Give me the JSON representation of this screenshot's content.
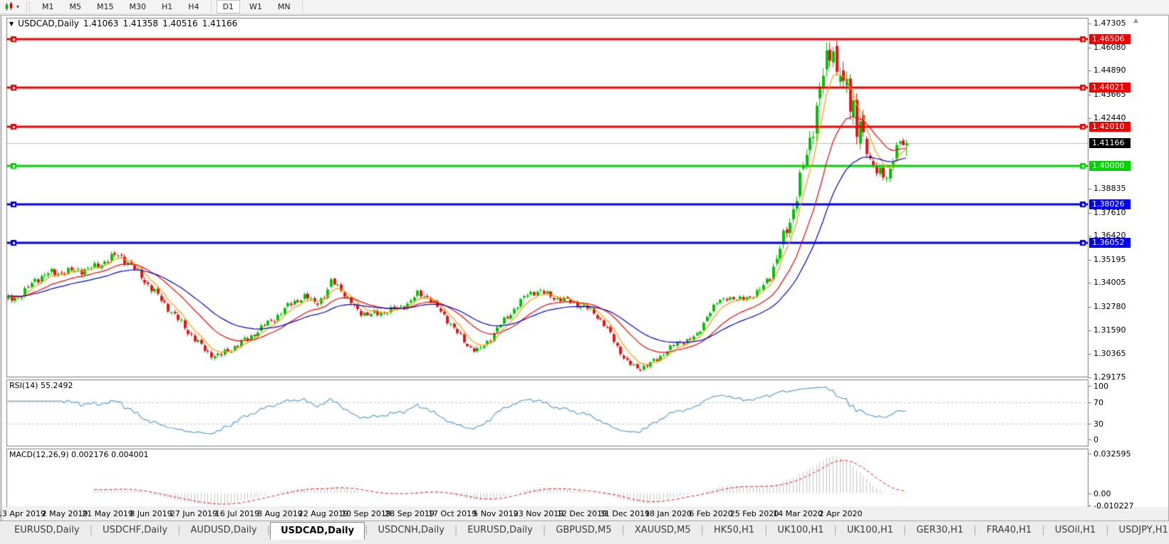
{
  "toolbar": {
    "timeframes": [
      "M1",
      "M5",
      "M15",
      "M30",
      "H1",
      "H4",
      "D1",
      "W1",
      "MN"
    ],
    "active_timeframe": "D1",
    "separator_after": [
      "H4",
      "MN"
    ]
  },
  "title": {
    "symbol_period": "USDCAD,Daily",
    "open": "1.41063",
    "high": "1.41358",
    "low": "1.40516",
    "close": "1.41166"
  },
  "chart_data": {
    "type": "candlestick",
    "symbol": "USDCAD",
    "timeframe": "Daily",
    "current_bar": {
      "open": 1.41063,
      "high": 1.41358,
      "low": 1.40516,
      "close": 1.41166
    },
    "y_axis_ticks": [
      "1.47305",
      "1.46080",
      "1.44890",
      "1.43665",
      "1.42440",
      "1.38835",
      "1.37610",
      "1.36420",
      "1.35195",
      "1.34005",
      "1.32780",
      "1.31590",
      "1.30365",
      "1.29175"
    ],
    "price_max": 1.476,
    "price_min": 1.292,
    "x_axis_labels": [
      "13 Apr 2019",
      "2 May 2019",
      "21 May 2019",
      "8 Jun 2019",
      "27 Jun 2019",
      "16 Jul 2019",
      "3 Aug 2019",
      "22 Aug 2019",
      "10 Sep 2019",
      "28 Sep 2019",
      "17 Oct 2019",
      "5 Nov 2019",
      "23 Nov 2019",
      "12 Dec 2019",
      "31 Dec 2019",
      "18 Jan 2020",
      "6 Feb 2020",
      "25 Feb 2020",
      "14 Mar 2020",
      "2 Apr 2020"
    ],
    "horizontal_lines": [
      {
        "price": 1.46506,
        "label": "1.46506",
        "color": "#ee0000"
      },
      {
        "price": 1.44021,
        "label": "1.44021",
        "color": "#ee0000"
      },
      {
        "price": 1.4201,
        "label": "1.42010",
        "color": "#ee0000"
      },
      {
        "price": 1.4,
        "label": "1.40000",
        "color": "#00d400"
      },
      {
        "price": 1.38026,
        "label": "1.38026",
        "color": "#0000ee"
      },
      {
        "price": 1.36052,
        "label": "1.36052",
        "color": "#0000ee"
      }
    ],
    "current_price": {
      "value": 1.41166,
      "label": "1.41166",
      "line_color": "#bdbdbd",
      "label_bg": "#000000"
    },
    "bars_count": 271,
    "up_color": "#00c400",
    "down_color": "#f01010",
    "price_path": [
      [
        0,
        1.331
      ],
      [
        5,
        1.334
      ],
      [
        9,
        1.342
      ],
      [
        13,
        1.345
      ],
      [
        17,
        1.3455
      ],
      [
        22,
        1.3465
      ],
      [
        27,
        1.348
      ],
      [
        31,
        1.3525
      ],
      [
        34,
        1.3545
      ],
      [
        37,
        1.3505
      ],
      [
        40,
        1.345
      ],
      [
        43,
        1.339
      ],
      [
        47,
        1.331
      ],
      [
        51,
        1.323
      ],
      [
        55,
        1.315
      ],
      [
        58,
        1.309
      ],
      [
        61,
        1.304
      ],
      [
        64,
        1.3025
      ],
      [
        67,
        1.3055
      ],
      [
        70,
        1.3085
      ],
      [
        74,
        1.313
      ],
      [
        78,
        1.3185
      ],
      [
        82,
        1.3235
      ],
      [
        86,
        1.33
      ],
      [
        90,
        1.333
      ],
      [
        93,
        1.33
      ],
      [
        96,
        1.333
      ],
      [
        98,
        1.341
      ],
      [
        100,
        1.339
      ],
      [
        103,
        1.331
      ],
      [
        106,
        1.326
      ],
      [
        109,
        1.3235
      ],
      [
        113,
        1.325
      ],
      [
        117,
        1.3265
      ],
      [
        121,
        1.3295
      ],
      [
        124,
        1.3345
      ],
      [
        127,
        1.333
      ],
      [
        130,
        1.327
      ],
      [
        133,
        1.321
      ],
      [
        136,
        1.314
      ],
      [
        139,
        1.308
      ],
      [
        142,
        1.305
      ],
      [
        145,
        1.31
      ],
      [
        148,
        1.317
      ],
      [
        151,
        1.323
      ],
      [
        154,
        1.329
      ],
      [
        157,
        1.3345
      ],
      [
        160,
        1.336
      ],
      [
        163,
        1.334
      ],
      [
        166,
        1.332
      ],
      [
        169,
        1.331
      ],
      [
        172,
        1.329
      ],
      [
        175,
        1.327
      ],
      [
        178,
        1.323
      ],
      [
        181,
        1.316
      ],
      [
        184,
        1.307
      ],
      [
        187,
        1.299
      ],
      [
        190,
        1.2962
      ],
      [
        193,
        1.298
      ],
      [
        196,
        1.301
      ],
      [
        199,
        1.306
      ],
      [
        202,
        1.309
      ],
      [
        205,
        1.311
      ],
      [
        208,
        1.313
      ],
      [
        211,
        1.324
      ],
      [
        214,
        1.33
      ],
      [
        217,
        1.333
      ],
      [
        220,
        1.331
      ],
      [
        223,
        1.333
      ],
      [
        226,
        1.3345
      ],
      [
        228,
        1.339
      ],
      [
        230,
        1.345
      ],
      [
        232,
        1.353
      ],
      [
        234,
        1.364
      ],
      [
        236,
        1.373
      ],
      [
        238,
        1.387
      ],
      [
        240,
        1.4
      ],
      [
        242,
        1.414
      ],
      [
        244,
        1.433
      ],
      [
        246,
        1.448
      ],
      [
        248,
        1.458
      ],
      [
        249,
        1.463
      ],
      [
        250,
        1.445
      ],
      [
        251,
        1.453
      ],
      [
        252,
        1.434
      ],
      [
        253,
        1.444
      ],
      [
        254,
        1.425
      ],
      [
        255,
        1.433
      ],
      [
        256,
        1.418
      ],
      [
        257,
        1.425
      ],
      [
        258,
        1.413
      ],
      [
        259,
        1.405
      ],
      [
        260,
        1.399
      ],
      [
        261,
        1.402
      ],
      [
        262,
        1.397
      ],
      [
        263,
        1.3995
      ],
      [
        264,
        1.3955
      ],
      [
        265,
        1.3905
      ],
      [
        266,
        1.3985
      ],
      [
        267,
        1.404
      ],
      [
        268,
        1.411
      ],
      [
        269,
        1.4165
      ],
      [
        270,
        1.4117
      ]
    ],
    "bar_range_path": [
      [
        0,
        0.0055
      ],
      [
        30,
        0.0062
      ],
      [
        45,
        0.006
      ],
      [
        70,
        0.0052
      ],
      [
        100,
        0.005
      ],
      [
        130,
        0.0052
      ],
      [
        160,
        0.0048
      ],
      [
        185,
        0.0046
      ],
      [
        200,
        0.004
      ],
      [
        222,
        0.0042
      ],
      [
        228,
        0.007
      ],
      [
        234,
        0.011
      ],
      [
        240,
        0.015
      ],
      [
        245,
        0.019
      ],
      [
        250,
        0.021
      ],
      [
        254,
        0.019
      ],
      [
        258,
        0.013
      ],
      [
        262,
        0.008
      ],
      [
        266,
        0.009
      ],
      [
        270,
        0.0085
      ]
    ],
    "moving_averages": [
      {
        "name": "fast",
        "period": 6,
        "color": "#ff9900"
      },
      {
        "name": "medium",
        "period": 18,
        "color": "#ee0000"
      },
      {
        "name": "slow",
        "period": 34,
        "color": "#0000cc"
      }
    ],
    "indicators": {
      "rsi": {
        "label": "RSI(14) 55.2492",
        "period": 14,
        "value": 55.2492,
        "levels": [
          70,
          30
        ],
        "scale_ticks": [
          "100",
          "70",
          "30",
          "0"
        ],
        "scale_max": 100,
        "scale_min": 0,
        "color": "#56a0d9",
        "level_color": "#c0c0c0"
      },
      "macd": {
        "label": "MACD(12,26,9) 0.002176 0.004001",
        "fast": 12,
        "slow": 26,
        "signal_period": 9,
        "macd_value": 0.002176,
        "signal_value": 0.004001,
        "scale_ticks": [
          "0.032595",
          "0.00",
          "-0.010227"
        ],
        "scale_max": 0.032595,
        "scale_min": -0.010227,
        "histogram_color": "#c4c4c4",
        "signal_color": "#f01010"
      }
    }
  },
  "tabs": {
    "items": [
      "EURUSD,Daily",
      "USDCHF,Daily",
      "AUDUSD,Daily",
      "USDCAD,Daily",
      "USDCNH,Daily",
      "EURUSD,Daily",
      "GBPUSD,M5",
      "XAUUSD,M5",
      "HK50,H1",
      "UK100,H1",
      "UK100,H1",
      "GER30,H1",
      "FRA40,H1",
      "USOil,H1",
      "USDJPY,H1"
    ],
    "active_index": 3
  }
}
